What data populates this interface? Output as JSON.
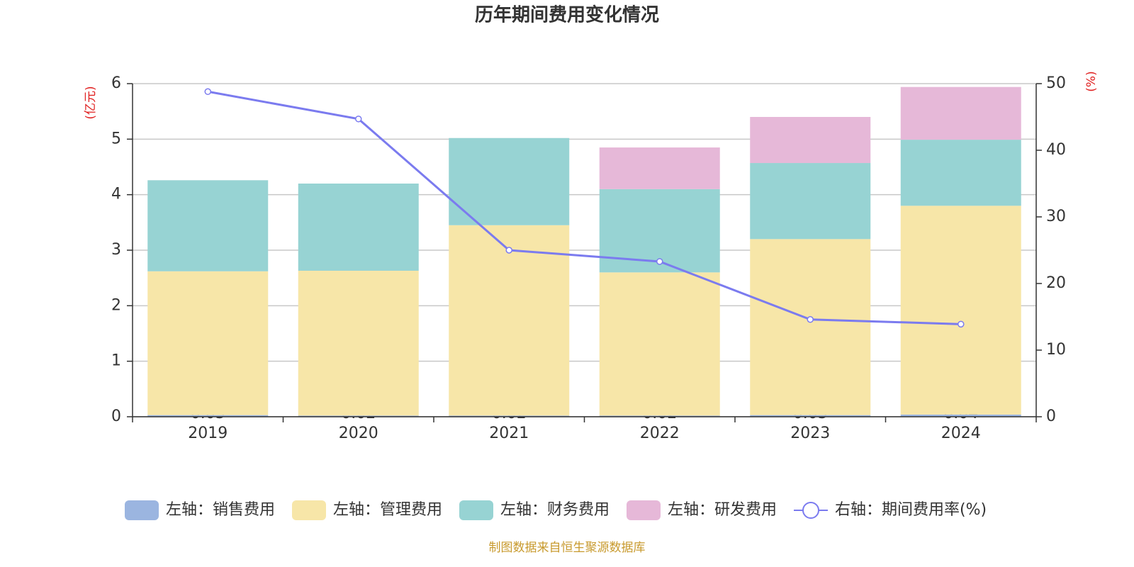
{
  "chart_data": {
    "type": "bar",
    "title": "历年期间费用变化情况",
    "y_label": "(亿元)",
    "y2_label": "(%)",
    "source": "制图数据来自恒生聚源数据库",
    "categories": [
      "2019",
      "2020",
      "2021",
      "2022",
      "2023",
      "2024"
    ],
    "series": [
      {
        "name": "左轴：销售费用",
        "color": "#9bb5e0",
        "values": [
          0.03,
          0.02,
          0.02,
          0.02,
          0.03,
          0.04
        ]
      },
      {
        "name": "左轴：管理费用",
        "color": "#f7e6a8",
        "values": [
          2.59,
          2.61,
          3.43,
          2.58,
          3.17,
          3.76
        ]
      },
      {
        "name": "左轴：财务费用",
        "color": "#97d3d3",
        "values": [
          1.64,
          1.57,
          1.57,
          1.5,
          1.37,
          1.19
        ]
      },
      {
        "name": "左轴：研发费用",
        "color": "#e6b8d8",
        "values": [
          null,
          null,
          null,
          0.75,
          0.83,
          0.95
        ]
      },
      {
        "name": "右轴：期间费用率(%)",
        "color": "#7b7bef",
        "type": "line",
        "axis": "y2",
        "values": [
          48.8,
          44.7,
          25.0,
          23.3,
          14.6,
          13.9
        ]
      }
    ],
    "ylim": [
      0,
      6
    ],
    "yticks": [
      0,
      1,
      2,
      3,
      4,
      5,
      6
    ],
    "y2lim": [
      0,
      50
    ],
    "y2ticks": [
      0,
      10,
      20,
      30,
      40,
      50
    ],
    "grid": true
  }
}
